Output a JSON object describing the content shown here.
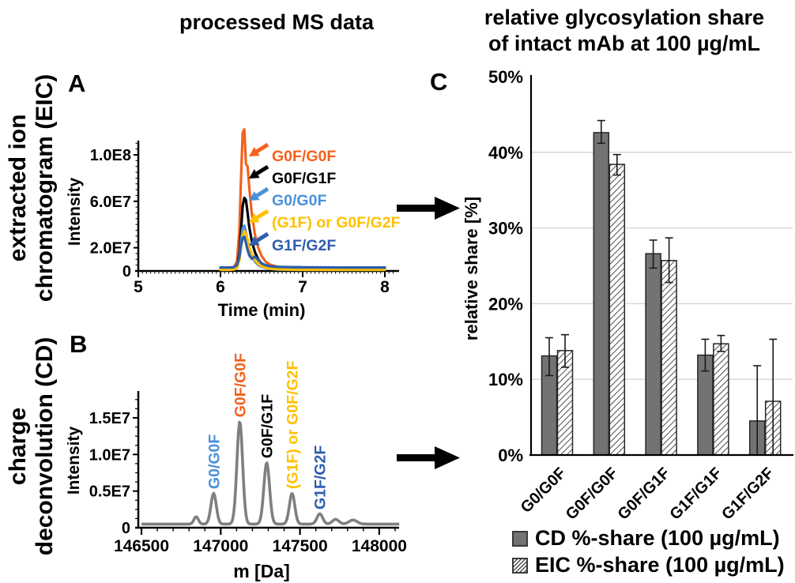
{
  "figure": {
    "left_column_title": "processed MS data",
    "right_column_title": [
      "relative glycosylation share",
      "of intact mAb at 100 µg/mL"
    ],
    "row_labels": {
      "eic": [
        "extracted ion",
        "chromatogram (EIC)"
      ],
      "cd": [
        "charge",
        "deconvolution (CD)"
      ]
    },
    "panel_letters": {
      "a": "A",
      "b": "B",
      "c": "C"
    }
  },
  "colors": {
    "g0f_g0f": "#F4611D",
    "g0f_g1f": "#000000",
    "g0_g0f": "#4A90D9",
    "g1f_or_g0f_g2f": "#FFC000",
    "g1f_g2f": "#2E5DAD",
    "spectrum_line": "#7F7F7F",
    "cd_bar_fill": "#737373",
    "gridline": "#D9D9D9"
  },
  "chart_data": [
    {
      "panel": "A",
      "type": "line",
      "xlabel": "Time (min)",
      "ylabel": "Intensity",
      "xlim_min": [
        5,
        8.15
      ],
      "xticks_min": [
        5,
        6,
        7,
        8
      ],
      "yticks": [
        {
          "value_e7": 0,
          "label": "0"
        },
        {
          "value_e7": 2,
          "label": "2.0E7"
        },
        {
          "value_e7": 6,
          "label": "6.0E7"
        },
        {
          "value_e7": 10,
          "label": "1.0E8"
        }
      ],
      "x_minutes": [
        6.0,
        6.1,
        6.16,
        6.2,
        6.23,
        6.25,
        6.27,
        6.29,
        6.31,
        6.33,
        6.35,
        6.38,
        6.42,
        6.46,
        6.5,
        6.55,
        6.6,
        6.7,
        6.85,
        7.0,
        7.5,
        8.0
      ],
      "series": [
        {
          "name": "G0F/G0F",
          "color": "#F4611D",
          "intensity_e7": [
            0.25,
            0.25,
            0.3,
            0.8,
            3.5,
            8.0,
            11.9,
            12.2,
            9.2,
            9.0,
            7.2,
            5.0,
            3.1,
            2.0,
            1.3,
            0.8,
            0.55,
            0.35,
            0.3,
            0.28,
            0.26,
            0.25
          ]
        },
        {
          "name": "G0F/G1F",
          "color": "#000000",
          "intensity_e7": [
            0.15,
            0.15,
            0.2,
            0.4,
            1.5,
            3.5,
            5.6,
            6.3,
            6.1,
            5.0,
            3.8,
            2.6,
            1.6,
            1.0,
            0.65,
            0.45,
            0.3,
            0.2,
            0.18,
            0.16,
            0.15,
            0.15
          ]
        },
        {
          "name": "G0/G0F",
          "color": "#4A90D9",
          "intensity_e7": [
            0.1,
            0.1,
            0.15,
            0.3,
            1.2,
            2.6,
            3.7,
            3.9,
            3.3,
            2.6,
            1.9,
            1.3,
            0.8,
            0.5,
            0.35,
            0.25,
            0.18,
            0.12,
            0.1,
            0.1,
            0.1,
            0.1
          ]
        },
        {
          "name": "(G1F) or G0F/G2F",
          "color": "#FFC000",
          "intensity_e7": [
            0.1,
            0.1,
            0.12,
            0.25,
            0.9,
            2.0,
            3.0,
            3.45,
            3.2,
            2.7,
            2.1,
            1.5,
            0.95,
            0.6,
            0.4,
            0.28,
            0.2,
            0.14,
            0.12,
            0.1,
            0.1,
            0.1
          ]
        },
        {
          "name": "G1F/G2F",
          "color": "#2E5DAD",
          "intensity_e7": [
            0.3,
            0.3,
            0.32,
            0.5,
            1.2,
            2.2,
            2.85,
            2.95,
            2.4,
            1.8,
            1.35,
            1.05,
            1.25,
            0.95,
            0.65,
            0.5,
            0.42,
            0.35,
            0.33,
            0.32,
            0.3,
            0.3
          ]
        }
      ],
      "peak_annotations": [
        {
          "text": "G0F/G0F",
          "color": "#F4611D"
        },
        {
          "text": "G0F/G1F",
          "color": "#000000"
        },
        {
          "text": "G0/G0F",
          "color": "#4A90D9"
        },
        {
          "text": "(G1F) or G0F/G2F",
          "color": "#FFC000"
        },
        {
          "text": "G1F/G2F",
          "color": "#2E5DAD"
        }
      ]
    },
    {
      "panel": "B",
      "type": "line",
      "xlabel": "m [Da]",
      "ylabel": "Intensity",
      "xlim_da": [
        146500,
        148130
      ],
      "xticks_da": [
        146500,
        147000,
        147500,
        148000
      ],
      "yticks": [
        {
          "value_e7": 0,
          "label": "0"
        },
        {
          "value_e7": 0.5,
          "label": "0.5E7"
        },
        {
          "value_e7": 1.0,
          "label": "1.0E7"
        },
        {
          "value_e7": 1.5,
          "label": "1.5E7"
        }
      ],
      "baseline_e7": 0.05,
      "line_color": "#7F7F7F",
      "peaks": [
        {
          "name": "G0/G0F",
          "mass_da": 146955,
          "intensity_e7": 0.42,
          "sigma_da": 17,
          "label_color": "#4A90D9"
        },
        {
          "name": "G0F/G0F",
          "mass_da": 147120,
          "intensity_e7": 1.4,
          "sigma_da": 18,
          "label_color": "#F4611D"
        },
        {
          "name": "G0F/G1F",
          "mass_da": 147290,
          "intensity_e7": 0.84,
          "sigma_da": 18,
          "label_color": "#000000"
        },
        {
          "name": "(G1F) or G0F/G2F",
          "mass_da": 147450,
          "intensity_e7": 0.42,
          "sigma_da": 17,
          "label_color": "#FFC000"
        },
        {
          "name": "G1F/G2F",
          "mass_da": 147625,
          "intensity_e7": 0.14,
          "sigma_da": 18,
          "label_color": "#2E5DAD"
        }
      ],
      "minor_bumps": [
        {
          "mass_da": 146845,
          "intensity_e7": 0.1,
          "sigma_da": 14
        },
        {
          "mass_da": 147725,
          "intensity_e7": 0.065,
          "sigma_da": 20
        },
        {
          "mass_da": 147835,
          "intensity_e7": 0.055,
          "sigma_da": 25
        }
      ]
    },
    {
      "panel": "C",
      "type": "bar",
      "ylabel": "relative share [%]",
      "ylim_percent": [
        0,
        50
      ],
      "ytick_labels": [
        "0%",
        "10%",
        "20%",
        "30%",
        "40%",
        "50%"
      ],
      "categories": [
        "G0/G0F",
        "G0F/G0F",
        "G0F/G1F",
        "G1F/G1F",
        "G1F/G2F"
      ],
      "series": [
        {
          "name": "CD %-share (100 µg/mL)",
          "fill": "solid-gray",
          "values_percent": [
            13.1,
            42.6,
            26.6,
            13.2,
            4.5
          ],
          "error_up_percent": [
            2.4,
            1.6,
            1.8,
            2.1,
            7.3
          ],
          "error_down_percent": [
            2.6,
            1.4,
            1.9,
            2.1,
            4.5
          ]
        },
        {
          "name": "EIC %-share (100 µg/mL)",
          "fill": "diagonal-hatch",
          "values_percent": [
            13.8,
            38.4,
            25.7,
            14.7,
            7.1
          ],
          "error_up_percent": [
            2.1,
            1.3,
            3.0,
            1.1,
            8.2
          ],
          "error_down_percent": [
            2.2,
            1.4,
            2.9,
            1.0,
            7.1
          ]
        }
      ]
    }
  ]
}
